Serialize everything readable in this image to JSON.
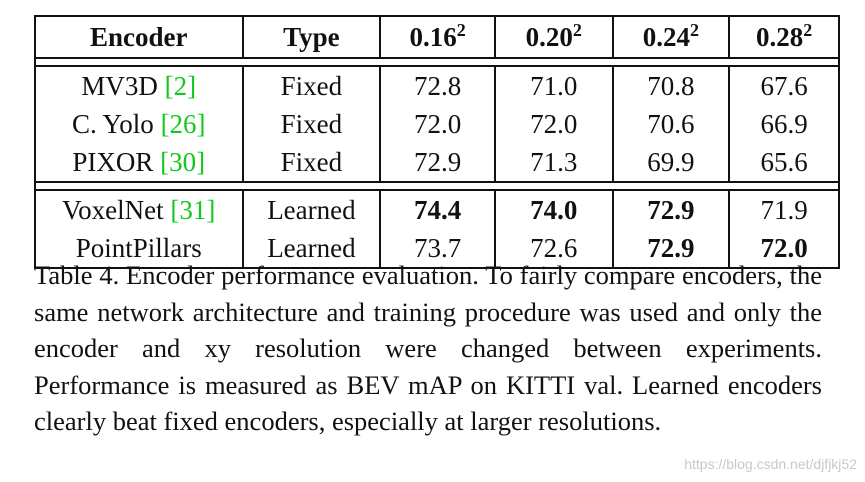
{
  "table": {
    "headers": {
      "encoder": "Encoder",
      "type": "Type",
      "res1_base": "0.16",
      "res1_exp": "2",
      "res2_base": "0.20",
      "res2_exp": "2",
      "res3_base": "0.24",
      "res3_exp": "2",
      "res4_base": "0.28",
      "res4_exp": "2"
    },
    "fixed_rows": [
      {
        "name": "MV3D",
        "cite": "[2]",
        "type": "Fixed",
        "v1": "72.8",
        "v2": "71.0",
        "v3": "70.8",
        "v4": "67.6"
      },
      {
        "name": "C. Yolo",
        "cite": "[26]",
        "type": "Fixed",
        "v1": "72.0",
        "v2": "72.0",
        "v3": "70.6",
        "v4": "66.9"
      },
      {
        "name": "PIXOR",
        "cite": "[30]",
        "type": "Fixed",
        "v1": "72.9",
        "v2": "71.3",
        "v3": "69.9",
        "v4": "65.6"
      }
    ],
    "learned_rows": [
      {
        "name": "VoxelNet",
        "cite": "[31]",
        "type": "Learned",
        "v1": "74.4",
        "v2": "74.0",
        "v3": "72.9",
        "v4": "71.9",
        "bold": [
          true,
          true,
          true,
          false
        ]
      },
      {
        "name": "PointPillars",
        "cite": "",
        "type": "Learned",
        "v1": "73.7",
        "v2": "72.6",
        "v3": "72.9",
        "v4": "72.0",
        "bold": [
          false,
          false,
          true,
          true
        ]
      }
    ]
  },
  "caption": {
    "text": "Table 4. Encoder performance evaluation.  To fairly compare encoders, the same network architecture and training procedure was used and only the encoder and xy resolution were changed between experiments.  Performance is measured as BEV mAP on KITTI val.  Learned encoders clearly beat fixed encoders, especially at larger resolutions."
  },
  "watermark": "https://blog.csdn.net/djfjkj52"
}
